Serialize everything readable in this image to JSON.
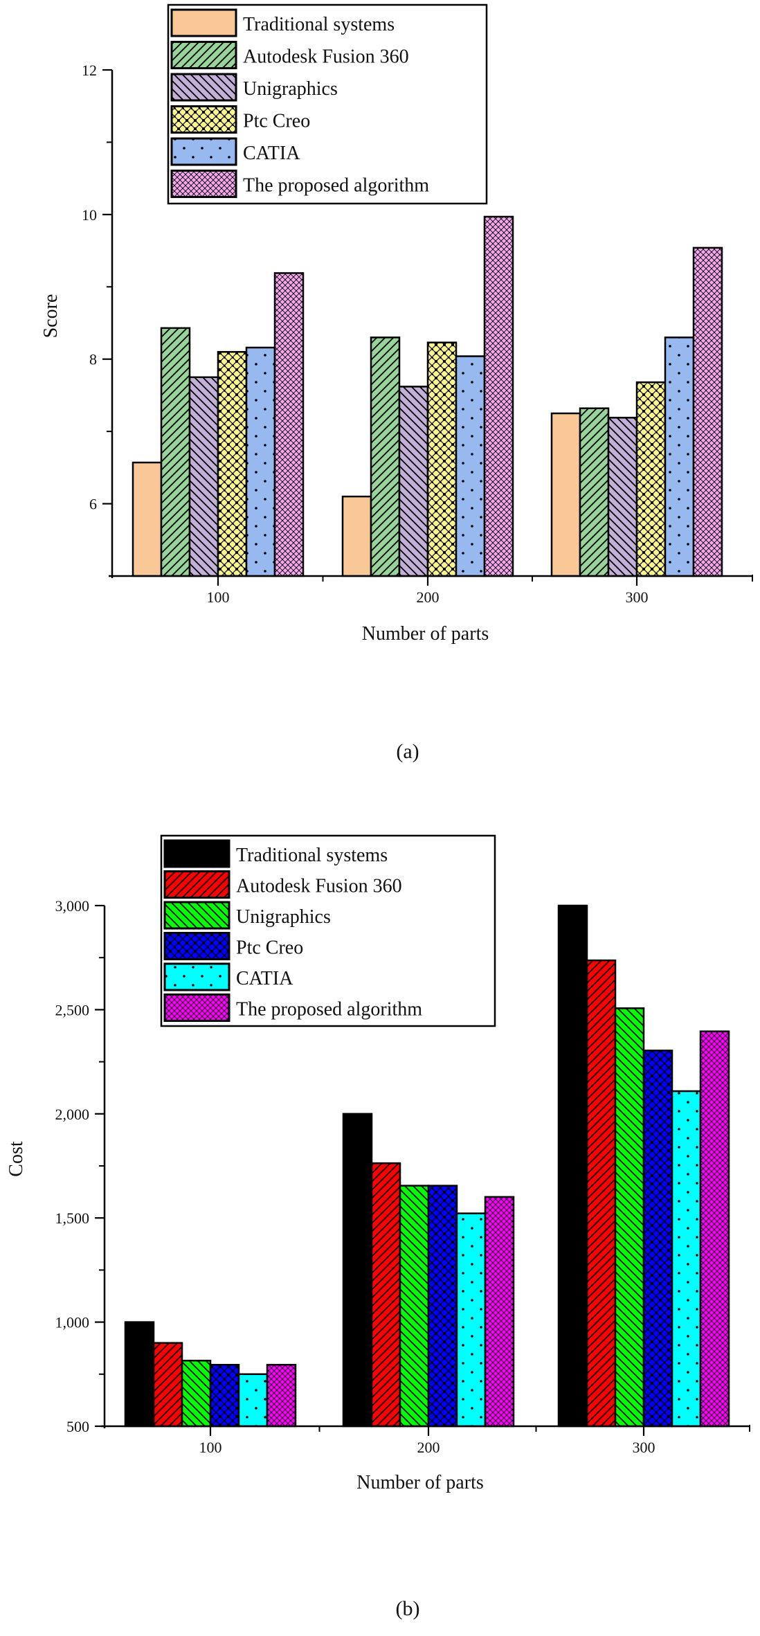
{
  "figure": {
    "panels": [
      {
        "caption": "(a)",
        "xlabel": "Number of parts",
        "ylabel": "Score",
        "yticks": [
          "6",
          "8",
          "10",
          "12"
        ]
      },
      {
        "caption": "(b)",
        "xlabel": "Number of parts",
        "ylabel": "Cost",
        "yticks": [
          "500",
          "1,000",
          "1,500",
          "2,000",
          "2,500",
          "3,000"
        ]
      }
    ]
  },
  "chart_data": [
    {
      "type": "bar",
      "title": "",
      "caption": "(a)",
      "xlabel": "Number of parts",
      "ylabel": "Score",
      "categories": [
        "100",
        "200",
        "300"
      ],
      "ylim": [
        5,
        12
      ],
      "yticks": [
        6,
        8,
        10,
        12
      ],
      "minor_yticks": [
        7,
        9,
        11
      ],
      "grid": false,
      "legend_position": "top-inside",
      "series": [
        {
          "name": "Traditional systems",
          "color": "#FAC896",
          "pattern": "solid",
          "values": [
            6.57,
            6.1,
            7.25
          ]
        },
        {
          "name": "Autodesk Fusion 360",
          "color": "#98D49A",
          "pattern": "forward-diagonal",
          "values": [
            8.43,
            8.3,
            7.32
          ]
        },
        {
          "name": "Unigraphics",
          "color": "#C3B0D8",
          "pattern": "back-diagonal",
          "values": [
            7.75,
            7.62,
            7.19
          ]
        },
        {
          "name": "Ptc Creo",
          "color": "#FCF58E",
          "pattern": "crosshatch-dots",
          "values": [
            8.1,
            8.23,
            7.68
          ]
        },
        {
          "name": "CATIA",
          "color": "#98B9F0",
          "pattern": "sparse-dots",
          "values": [
            8.16,
            8.04,
            8.3
          ]
        },
        {
          "name": "The proposed algorithm",
          "color": "#F6A8F0",
          "pattern": "dense-crosshatch",
          "values": [
            9.19,
            9.97,
            9.54
          ]
        }
      ]
    },
    {
      "type": "bar",
      "title": "",
      "caption": "(b)",
      "xlabel": "Number of parts",
      "ylabel": "Cost",
      "categories": [
        "100",
        "200",
        "300"
      ],
      "ylim": [
        500,
        3000
      ],
      "yticks": [
        500,
        1000,
        1500,
        2000,
        2500,
        3000
      ],
      "minor_yticks": [
        750,
        1250,
        1750,
        2250,
        2750
      ],
      "grid": false,
      "legend_position": "top-inside",
      "series": [
        {
          "name": "Traditional systems",
          "color": "#000000",
          "pattern": "solid",
          "values": [
            1000,
            2000,
            3000
          ]
        },
        {
          "name": "Autodesk Fusion 360",
          "color": "#FF0000",
          "pattern": "forward-diagonal",
          "values": [
            900,
            1763,
            2737
          ]
        },
        {
          "name": "Unigraphics",
          "color": "#00FF00",
          "pattern": "back-diagonal",
          "values": [
            815,
            1655,
            2507
          ]
        },
        {
          "name": "Ptc Creo",
          "color": "#0000FF",
          "pattern": "crosshatch-dots",
          "values": [
            795,
            1655,
            2304
          ]
        },
        {
          "name": "CATIA",
          "color": "#00FFFF",
          "pattern": "sparse-dots",
          "values": [
            750,
            1522,
            2109
          ]
        },
        {
          "name": "The proposed algorithm",
          "color": "#FF00FF",
          "pattern": "dense-crosshatch",
          "values": [
            795,
            1601,
            2396
          ]
        }
      ]
    }
  ]
}
